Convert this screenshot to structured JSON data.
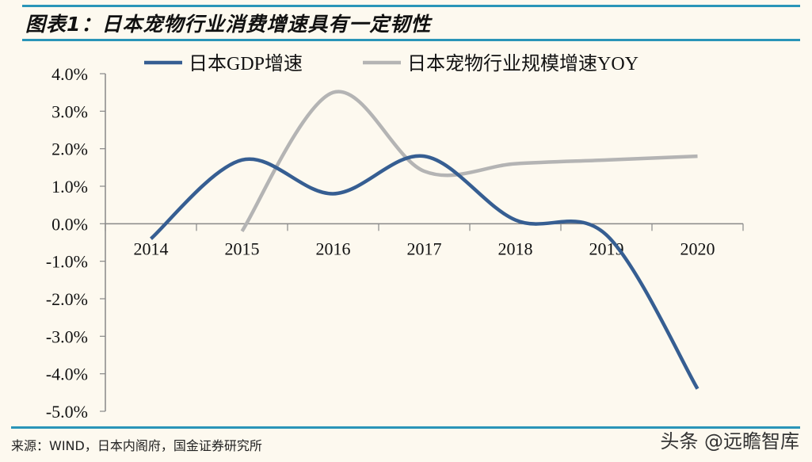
{
  "header": {
    "title": "图表1：日本宠物行业消费增速具有一定韧性"
  },
  "footer": {
    "source": "来源：WIND，日本内阁府，国金证券研究所",
    "watermark": "头条 @远瞻智库"
  },
  "colors": {
    "gdp": "#365e92",
    "pet": "#b4b4b4",
    "rule": "#2a95b8",
    "axis": "#888888",
    "background": "#fdf9ef"
  },
  "chart_data": {
    "type": "line",
    "title": "图表1：日本宠物行业消费增速具有一定韧性",
    "xlabel": "",
    "ylabel": "",
    "categories": [
      "2014",
      "2015",
      "2016",
      "2017",
      "2018",
      "2019",
      "2020"
    ],
    "series": [
      {
        "name": "日本GDP增速",
        "values": [
          -0.4,
          1.7,
          0.8,
          1.8,
          0.1,
          -0.3,
          -4.4
        ]
      },
      {
        "name": "日本宠物行业规模增速YOY",
        "values": [
          null,
          -0.2,
          3.5,
          1.4,
          1.6,
          1.7,
          1.8
        ]
      }
    ],
    "ylim": [
      -5.0,
      4.0
    ],
    "yticks": [
      "4.0%",
      "3.0%",
      "2.0%",
      "1.0%",
      "0.0%",
      "-1.0%",
      "-2.0%",
      "-3.0%",
      "-4.0%",
      "-5.0%"
    ],
    "grid": false,
    "legend_position": "top",
    "smooth": true
  }
}
